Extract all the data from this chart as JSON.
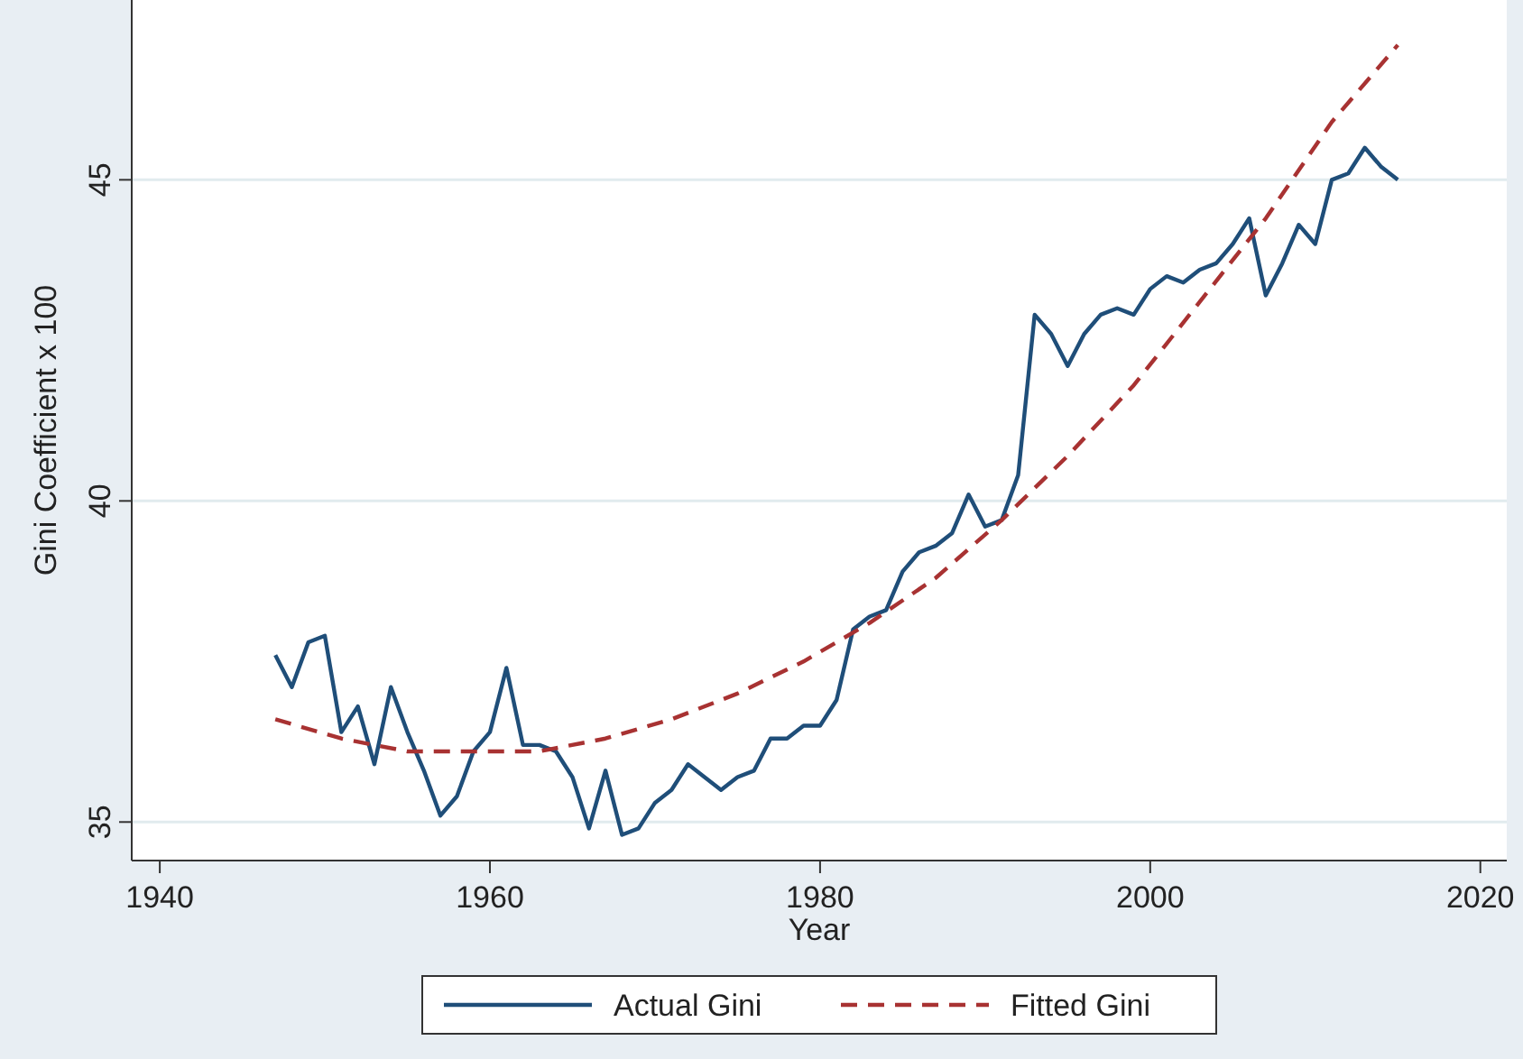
{
  "chart_data": {
    "type": "line",
    "xlabel": "Year",
    "ylabel": "Gini Coefficient x 100",
    "x": [
      1947,
      1948,
      1949,
      1950,
      1951,
      1952,
      1953,
      1954,
      1955,
      1956,
      1957,
      1958,
      1959,
      1960,
      1961,
      1962,
      1963,
      1964,
      1965,
      1966,
      1967,
      1968,
      1969,
      1970,
      1971,
      1972,
      1973,
      1974,
      1975,
      1976,
      1977,
      1978,
      1979,
      1980,
      1981,
      1982,
      1983,
      1984,
      1985,
      1986,
      1987,
      1988,
      1989,
      1990,
      1991,
      1992,
      1993,
      1994,
      1995,
      1996,
      1997,
      1998,
      1999,
      2000,
      2001,
      2002,
      2003,
      2004,
      2005,
      2006,
      2007,
      2008,
      2009,
      2010,
      2011,
      2012,
      2013,
      2014,
      2015
    ],
    "series": [
      {
        "name": "Actual Gini",
        "color": "#1f4e79",
        "line_style": "solid",
        "values": [
          37.6,
          37.1,
          37.8,
          37.9,
          36.4,
          36.8,
          35.9,
          37.1,
          36.4,
          35.8,
          35.1,
          35.4,
          36.1,
          36.4,
          37.4,
          36.2,
          36.2,
          36.1,
          35.7,
          34.9,
          35.8,
          34.8,
          34.9,
          35.3,
          35.5,
          35.9,
          35.7,
          35.5,
          35.7,
          35.8,
          36.3,
          36.3,
          36.5,
          36.5,
          36.9,
          38.0,
          38.2,
          38.3,
          38.9,
          39.2,
          39.3,
          39.5,
          40.1,
          39.6,
          39.7,
          40.4,
          42.9,
          42.6,
          42.1,
          42.6,
          42.9,
          43.0,
          42.9,
          43.3,
          43.5,
          43.4,
          43.6,
          43.7,
          44.0,
          44.4,
          43.2,
          43.7,
          44.3,
          44.0,
          45.0,
          45.1,
          45.5,
          45.2,
          45.0
        ]
      },
      {
        "name": "Fitted Gini",
        "color": "#a83232",
        "line_style": "dashed",
        "type": "line",
        "x": [
          1947,
          1951,
          1955,
          1959,
          1963,
          1967,
          1971,
          1975,
          1979,
          1983,
          1987,
          1991,
          1995,
          1999,
          2003,
          2007,
          2011,
          2015
        ],
        "values": [
          36.6,
          36.3,
          36.1,
          36.1,
          36.1,
          36.3,
          36.6,
          37.0,
          37.5,
          38.1,
          38.8,
          39.7,
          40.7,
          41.8,
          43.1,
          44.4,
          45.9,
          47.1
        ]
      }
    ],
    "xlim": [
      1938.3,
      2021.6
    ],
    "ylim": [
      34.4,
      47.8
    ],
    "xticks": [
      1940,
      1960,
      1980,
      2000,
      2020
    ],
    "yticks": [
      35,
      40,
      45
    ],
    "grid": "y",
    "legend": "bottom"
  }
}
